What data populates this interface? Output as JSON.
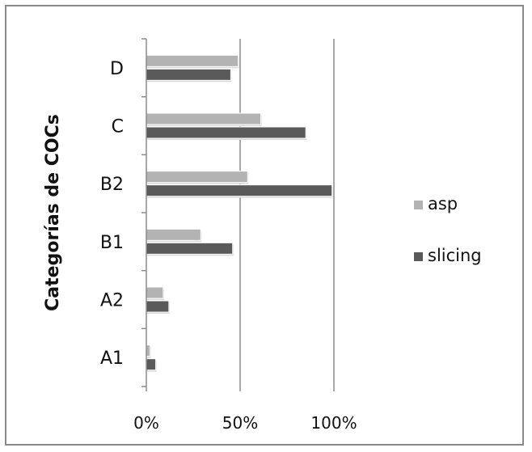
{
  "chart_data": {
    "type": "bar",
    "orientation": "horizontal",
    "categories": [
      "A1",
      "A2",
      "B1",
      "B2",
      "C",
      "D"
    ],
    "series": [
      {
        "name": "asp",
        "values": [
          2,
          9,
          29,
          54,
          61,
          49
        ],
        "color": "#b3b3b3"
      },
      {
        "name": "slicing",
        "values": [
          5,
          12,
          46,
          99,
          85,
          45
        ],
        "color": "#5a5a5a"
      }
    ],
    "title": "",
    "xlabel": "",
    "ylabel": "Categorías de COCs",
    "xlim": [
      0,
      100
    ],
    "xticks": [
      "0%",
      "50%",
      "100%"
    ],
    "grid": "vertical",
    "legend_position": "right"
  }
}
